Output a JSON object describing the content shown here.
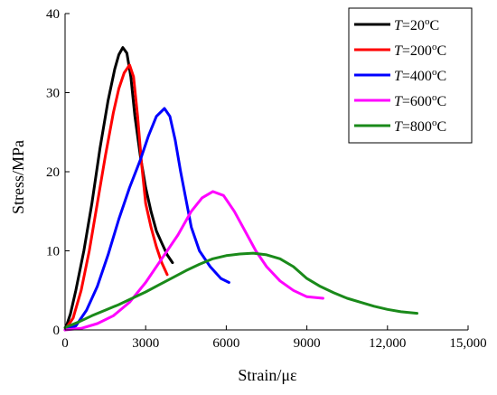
{
  "chart_data": {
    "type": "line",
    "xlabel": "Strain/με",
    "ylabel": "Stress/MPa",
    "xlim": [
      0,
      15000
    ],
    "ylim": [
      0,
      40
    ],
    "x_ticks": [
      0,
      3000,
      6000,
      9000,
      12000,
      15000
    ],
    "x_tick_labels": [
      "0",
      "3000",
      "6000",
      "9000",
      "12,000",
      "15,000"
    ],
    "y_ticks": [
      0,
      10,
      20,
      30,
      40
    ],
    "y_tick_labels": [
      "0",
      "10",
      "20",
      "30",
      "40"
    ],
    "grid": false,
    "legend_position": "top-right",
    "series": [
      {
        "name": "T=20°C",
        "legend_var": "T",
        "legend_rest": "=20",
        "legend_sup": "o",
        "legend_unit": "C",
        "color": "#000000",
        "points": [
          [
            0,
            0
          ],
          [
            200,
            2
          ],
          [
            400,
            5
          ],
          [
            700,
            10
          ],
          [
            1000,
            16
          ],
          [
            1300,
            23
          ],
          [
            1600,
            29
          ],
          [
            1850,
            33
          ],
          [
            2000,
            34.8
          ],
          [
            2150,
            35.7
          ],
          [
            2300,
            35
          ],
          [
            2450,
            32
          ],
          [
            2600,
            27
          ],
          [
            2800,
            22
          ],
          [
            3000,
            18
          ],
          [
            3200,
            15
          ],
          [
            3400,
            12.5
          ],
          [
            3600,
            11
          ],
          [
            3800,
            9.5
          ],
          [
            4000,
            8.5
          ]
        ]
      },
      {
        "name": "T=200°C",
        "legend_var": "T",
        "legend_rest": "=200",
        "legend_sup": "o",
        "legend_unit": "C",
        "color": "#ff0000",
        "points": [
          [
            0,
            0
          ],
          [
            300,
            1.5
          ],
          [
            600,
            5
          ],
          [
            900,
            10
          ],
          [
            1200,
            16
          ],
          [
            1500,
            22
          ],
          [
            1800,
            27.5
          ],
          [
            2000,
            30.5
          ],
          [
            2200,
            32.5
          ],
          [
            2400,
            33.5
          ],
          [
            2550,
            32
          ],
          [
            2700,
            27
          ],
          [
            2850,
            21
          ],
          [
            3000,
            16
          ],
          [
            3200,
            13
          ],
          [
            3400,
            10.5
          ],
          [
            3600,
            8.5
          ],
          [
            3800,
            7
          ]
        ]
      },
      {
        "name": "T=400°C",
        "legend_var": "T",
        "legend_rest": "=400",
        "legend_sup": "o",
        "legend_unit": "C",
        "color": "#0000ff",
        "points": [
          [
            0,
            0
          ],
          [
            400,
            0.5
          ],
          [
            800,
            2.5
          ],
          [
            1200,
            5.5
          ],
          [
            1600,
            9.5
          ],
          [
            2000,
            14
          ],
          [
            2400,
            18
          ],
          [
            2800,
            21.5
          ],
          [
            3100,
            24.5
          ],
          [
            3400,
            27
          ],
          [
            3700,
            28
          ],
          [
            3900,
            27
          ],
          [
            4100,
            24
          ],
          [
            4300,
            20
          ],
          [
            4500,
            16.5
          ],
          [
            4700,
            13
          ],
          [
            5000,
            10
          ],
          [
            5400,
            8
          ],
          [
            5800,
            6.5
          ],
          [
            6100,
            6
          ]
        ]
      },
      {
        "name": "T=600°C",
        "legend_var": "T",
        "legend_rest": "=600",
        "legend_sup": "o",
        "legend_unit": "C",
        "color": "#ff00ff",
        "points": [
          [
            0,
            0
          ],
          [
            600,
            0.2
          ],
          [
            1200,
            0.8
          ],
          [
            1800,
            1.8
          ],
          [
            2400,
            3.5
          ],
          [
            3000,
            6
          ],
          [
            3600,
            9
          ],
          [
            4200,
            12
          ],
          [
            4700,
            15
          ],
          [
            5100,
            16.7
          ],
          [
            5500,
            17.5
          ],
          [
            5900,
            17
          ],
          [
            6300,
            15
          ],
          [
            6700,
            12.5
          ],
          [
            7100,
            10
          ],
          [
            7500,
            8
          ],
          [
            8000,
            6.2
          ],
          [
            8500,
            5
          ],
          [
            9000,
            4.2
          ],
          [
            9600,
            4
          ]
        ]
      },
      {
        "name": "T=800°C",
        "legend_var": "T",
        "legend_rest": "=800",
        "legend_sup": "o",
        "legend_unit": "C",
        "color": "#1a8a1a",
        "points": [
          [
            0,
            0.3
          ],
          [
            500,
            1
          ],
          [
            1000,
            1.8
          ],
          [
            1500,
            2.5
          ],
          [
            2000,
            3.2
          ],
          [
            2500,
            4
          ],
          [
            3000,
            4.8
          ],
          [
            3500,
            5.7
          ],
          [
            4000,
            6.6
          ],
          [
            4500,
            7.5
          ],
          [
            5000,
            8.3
          ],
          [
            5500,
            9
          ],
          [
            6000,
            9.4
          ],
          [
            6500,
            9.6
          ],
          [
            7000,
            9.7
          ],
          [
            7500,
            9.5
          ],
          [
            8000,
            9
          ],
          [
            8500,
            8
          ],
          [
            9000,
            6.5
          ],
          [
            9500,
            5.5
          ],
          [
            10000,
            4.7
          ],
          [
            10500,
            4
          ],
          [
            11000,
            3.5
          ],
          [
            11500,
            3
          ],
          [
            12000,
            2.6
          ],
          [
            12500,
            2.3
          ],
          [
            13100,
            2.1
          ]
        ]
      }
    ]
  }
}
